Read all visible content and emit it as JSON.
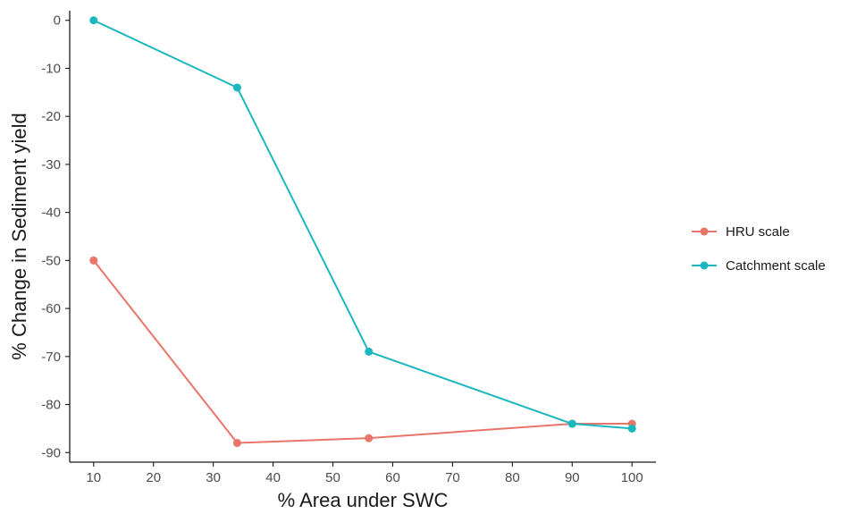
{
  "chart_data": {
    "type": "line",
    "xlabel": "% Area under SWC",
    "ylabel": "% Change in Sediment yield",
    "xlim": [
      6,
      104
    ],
    "ylim": [
      -92,
      2
    ],
    "xticks": [
      10,
      20,
      30,
      40,
      50,
      60,
      70,
      80,
      90,
      100
    ],
    "yticks": [
      0,
      -10,
      -20,
      -30,
      -40,
      -50,
      -60,
      -70,
      -80,
      -90
    ],
    "grid": false,
    "legend_position": "right",
    "series": [
      {
        "name": "HRU scale",
        "color": "#e8756a",
        "x": [
          10,
          34,
          56,
          90,
          100
        ],
        "y": [
          -50,
          -88,
          -87,
          -84,
          -84
        ]
      },
      {
        "name": "Catchment scale",
        "color": "#1bb7bf",
        "x": [
          10,
          34,
          56,
          90,
          100
        ],
        "y": [
          0,
          -14,
          -69,
          -84,
          -85
        ]
      }
    ]
  }
}
